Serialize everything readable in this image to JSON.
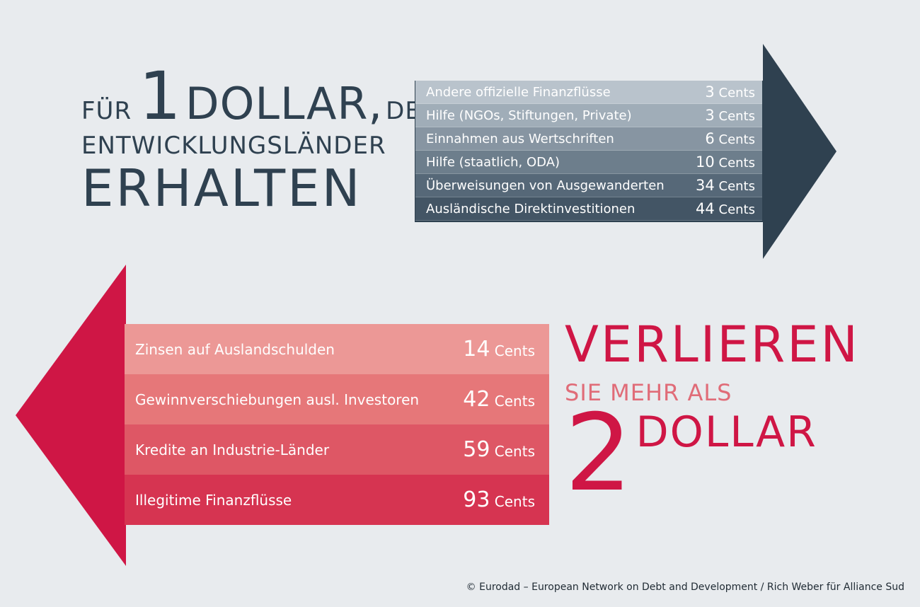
{
  "headline_top": {
    "prefix": "FÜR",
    "number": "1",
    "unit": "DOLLAR,",
    "suffix": "DEN",
    "line2": "ENTWICKLUNGSLÄNDER",
    "line3": "ERHALTEN"
  },
  "inflows": [
    {
      "label": "Andere offizielle Finanzflüsse",
      "value": "3",
      "unit": "Cents",
      "color": "#b9c3cc"
    },
    {
      "label": "Hilfe (NGOs, Stiftungen, Private)",
      "value": "3",
      "unit": "Cents",
      "color": "#a0adb8"
    },
    {
      "label": "Einnahmen aus Wertschriften",
      "value": "6",
      "unit": "Cents",
      "color": "#8795a2"
    },
    {
      "label": "Hilfe (staatlich, ODA)",
      "value": "10",
      "unit": "Cents",
      "color": "#6d7e8c"
    },
    {
      "label": "Überweisungen von Ausgewanderten",
      "value": "34",
      "unit": "Cents",
      "color": "#566878"
    },
    {
      "label": "Ausländische Direktinvestitionen",
      "value": "44",
      "unit": "Cents",
      "color": "#435565"
    }
  ],
  "outflows": [
    {
      "label": "Zinsen auf Auslandschulden",
      "value": "14",
      "unit": "Cents",
      "color": "#ec9896"
    },
    {
      "label": "Gewinnverschiebungen ausl. Investoren",
      "value": "42",
      "unit": "Cents",
      "color": "#e67779"
    },
    {
      "label": "Kredite an Industrie-Länder",
      "value": "59",
      "unit": "Cents",
      "color": "#de5765"
    },
    {
      "label": "Illegitime Finanzflüsse",
      "value": "93",
      "unit": "Cents",
      "color": "#d63451"
    }
  ],
  "headline_bottom": {
    "line1": "VERLIEREN",
    "line2": "SIE MEHR ALS",
    "number": "2",
    "unit": "DOLLAR"
  },
  "colors": {
    "background": "#e8ebee",
    "arrow_right": "#2f4150",
    "arrow_left": "#cf1645",
    "headline_bottom": "#cf1645",
    "headline_bottom_sub": "#e06c78"
  },
  "credit": "© Eurodad – European Network on Debt and Development / Rich Weber für Alliance Sud"
}
